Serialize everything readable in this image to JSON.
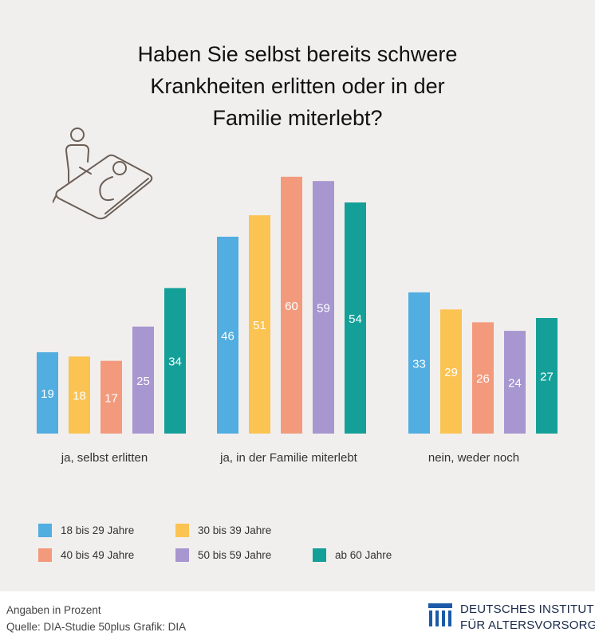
{
  "title_lines": [
    "Haben Sie selbst bereits schwere",
    "Krankheiten erlitten oder in der",
    "Familie miterlebt?"
  ],
  "illustration_icon": "person-at-sickbed-icon",
  "chart_data": {
    "type": "bar",
    "categories": [
      "ja, selbst erlitten",
      "ja, in der Familie miterlebt",
      "nein, weder noch"
    ],
    "series": [
      {
        "name": "18 bis 29 Jahre",
        "color": "#52ade0",
        "values": [
          19,
          46,
          33
        ]
      },
      {
        "name": "30 bis 39 Jahre",
        "color": "#fbc351",
        "values": [
          18,
          51,
          29
        ]
      },
      {
        "name": "40 bis 49 Jahre",
        "color": "#f39a7d",
        "values": [
          17,
          60,
          26
        ]
      },
      {
        "name": "50 bis 59 Jahre",
        "color": "#a796cf",
        "values": [
          25,
          59,
          24
        ]
      },
      {
        "name": "ab 60 Jahre",
        "color": "#14a098",
        "values": [
          34,
          54,
          27
        ]
      }
    ],
    "ylim": [
      0,
      60
    ],
    "data_labels": true,
    "gridlines": false,
    "legend_position": "bottom-left"
  },
  "footer": {
    "unit_note": "Angaben in Prozent",
    "source_note": "Quelle: DIA-Studie 50plus  Grafik: DIA"
  },
  "brand": {
    "line1": "DEUTSCHES INSTITUT",
    "line2": "FÜR ALTERSVORSORGE",
    "color": "#1b5aa8"
  }
}
